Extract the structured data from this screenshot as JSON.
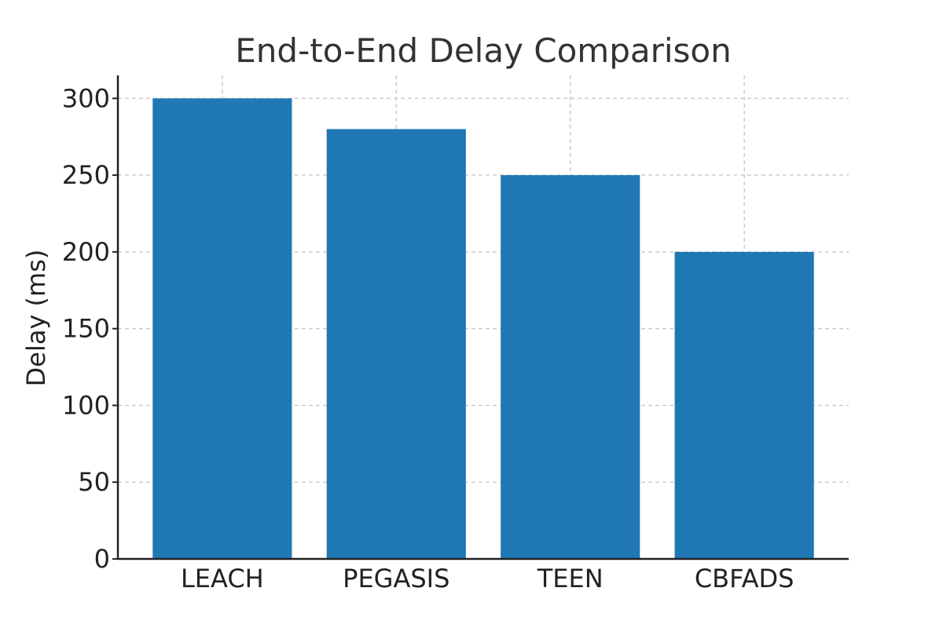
{
  "chart_data": {
    "type": "bar",
    "title": "End-to-End Delay Comparison",
    "xlabel": "",
    "ylabel": "Delay (ms)",
    "categories": [
      "LEACH",
      "PEGASIS",
      "TEEN",
      "CBFADS"
    ],
    "values": [
      300,
      280,
      250,
      200
    ],
    "ylim": [
      0,
      315
    ],
    "yticks": [
      0,
      50,
      100,
      150,
      200,
      250,
      300
    ],
    "grid": true,
    "legend": "none",
    "bar_color": "#1f77b4"
  }
}
